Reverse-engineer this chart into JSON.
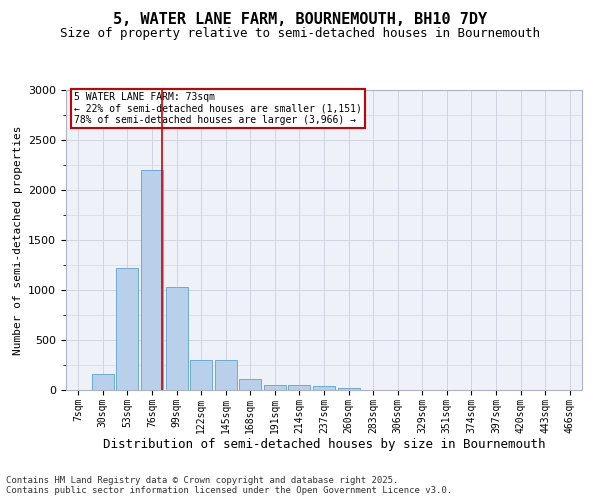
{
  "title": "5, WATER LANE FARM, BOURNEMOUTH, BH10 7DY",
  "subtitle": "Size of property relative to semi-detached houses in Bournemouth",
  "xlabel": "Distribution of semi-detached houses by size in Bournemouth",
  "ylabel": "Number of semi-detached properties",
  "categories": [
    "7sqm",
    "30sqm",
    "53sqm",
    "76sqm",
    "99sqm",
    "122sqm",
    "145sqm",
    "168sqm",
    "191sqm",
    "214sqm",
    "237sqm",
    "260sqm",
    "283sqm",
    "306sqm",
    "329sqm",
    "351sqm",
    "374sqm",
    "397sqm",
    "420sqm",
    "443sqm",
    "466sqm"
  ],
  "values": [
    5,
    160,
    1220,
    2200,
    1030,
    300,
    300,
    110,
    55,
    50,
    40,
    20,
    5,
    0,
    0,
    0,
    0,
    0,
    0,
    0,
    0
  ],
  "bar_color": "#b8d0ea",
  "bar_edge_color": "#6baad8",
  "ylim": [
    0,
    3000
  ],
  "property_bin_index": 3,
  "vline_color": "#cc0000",
  "annotation_text": "5 WATER LANE FARM: 73sqm\n← 22% of semi-detached houses are smaller (1,151)\n78% of semi-detached houses are larger (3,966) →",
  "annotation_box_color": "#cc0000",
  "grid_color": "#cdd5e0",
  "background_color": "#eef2f8",
  "footer_line1": "Contains HM Land Registry data © Crown copyright and database right 2025.",
  "footer_line2": "Contains public sector information licensed under the Open Government Licence v3.0.",
  "title_fontsize": 11,
  "subtitle_fontsize": 9,
  "xlabel_fontsize": 9,
  "ylabel_fontsize": 8,
  "tick_fontsize": 7,
  "footer_fontsize": 6.5
}
